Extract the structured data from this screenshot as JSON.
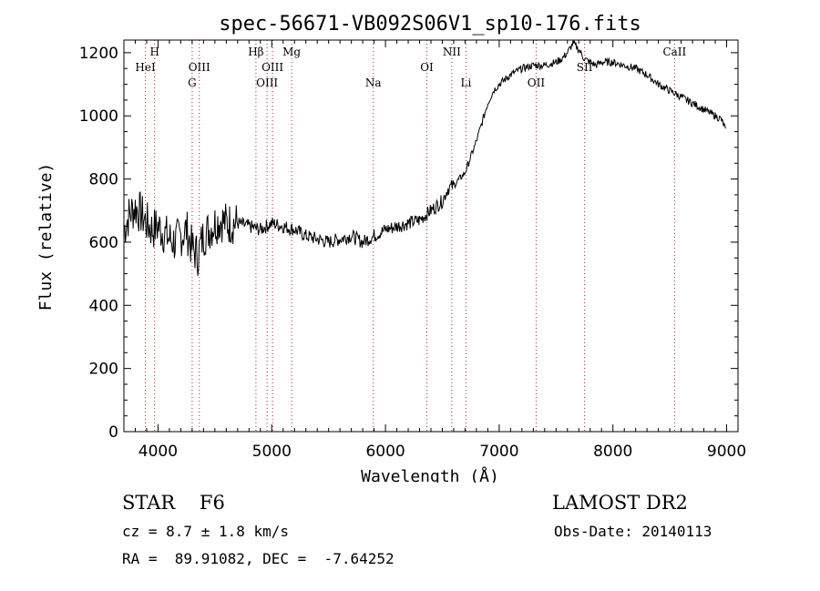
{
  "chart_data": {
    "type": "line",
    "title": "spec-56671-VB092S06V1_sp10-176.fits",
    "xlabel": "Wavelength (Å)",
    "ylabel": "Flux (relative)",
    "xlim": [
      3700,
      9100
    ],
    "ylim": [
      0,
      1240
    ],
    "xticks": [
      4000,
      5000,
      6000,
      7000,
      8000,
      9000
    ],
    "yticks": [
      0,
      200,
      400,
      600,
      800,
      1000,
      1200
    ],
    "series": [
      {
        "name": "spectrum",
        "x": [
          3700,
          3750,
          3800,
          3850,
          3900,
          3950,
          4000,
          4050,
          4100,
          4150,
          4200,
          4250,
          4300,
          4350,
          4400,
          4450,
          4500,
          4550,
          4600,
          4700,
          4800,
          4900,
          5000,
          5100,
          5200,
          5300,
          5400,
          5500,
          5600,
          5700,
          5800,
          5900,
          6000,
          6100,
          6200,
          6300,
          6400,
          6500,
          6550,
          6600,
          6700,
          6750,
          6800,
          6850,
          6900,
          6950,
          7000,
          7100,
          7200,
          7300,
          7400,
          7500,
          7550,
          7600,
          7650,
          7700,
          7750,
          7800,
          7850,
          7900,
          8000,
          8100,
          8200,
          8300,
          8400,
          8500,
          8600,
          8700,
          8800,
          8900,
          8950,
          8990
        ],
        "y": [
          640,
          690,
          710,
          690,
          660,
          640,
          650,
          630,
          610,
          600,
          620,
          640,
          580,
          560,
          620,
          640,
          660,
          670,
          660,
          660,
          650,
          640,
          660,
          650,
          640,
          620,
          610,
          600,
          610,
          620,
          600,
          620,
          640,
          650,
          660,
          670,
          700,
          730,
          770,
          780,
          820,
          870,
          920,
          980,
          1040,
          1080,
          1100,
          1130,
          1150,
          1160,
          1160,
          1170,
          1180,
          1200,
          1230,
          1210,
          1180,
          1170,
          1160,
          1170,
          1170,
          1160,
          1150,
          1130,
          1100,
          1080,
          1060,
          1040,
          1020,
          1000,
          990,
          960
        ]
      }
    ],
    "lines": [
      {
        "x": 3889,
        "label": "HeI",
        "row": 2
      },
      {
        "x": 3970,
        "label": "H",
        "row": 1
      },
      {
        "x": 4300,
        "label": "G",
        "row": 3
      },
      {
        "x": 4363,
        "label": "OIII",
        "row": 2
      },
      {
        "x": 4861,
        "label": "Hβ",
        "row": 1
      },
      {
        "x": 4959,
        "label": "OIII",
        "row": 3
      },
      {
        "x": 5007,
        "label": "OIII",
        "row": 2
      },
      {
        "x": 5175,
        "label": "Mg",
        "row": 1
      },
      {
        "x": 5893,
        "label": "Na",
        "row": 3
      },
      {
        "x": 6364,
        "label": "OI",
        "row": 2
      },
      {
        "x": 6583,
        "label": "NII",
        "row": 1
      },
      {
        "x": 6708,
        "label": "Li",
        "row": 3
      },
      {
        "x": 7325,
        "label": "OII",
        "row": 3
      },
      {
        "x": 7751,
        "label": "SII",
        "row": 2
      },
      {
        "x": 8542,
        "label": "CaII",
        "row": 1
      }
    ]
  },
  "info": {
    "class_line": "STAR    F6",
    "cz_line": "cz = 8.7 ± 1.8 km/s",
    "radec_line": "RA =  89.91082, DEC =  -7.64252",
    "survey": "LAMOST DR2",
    "obs_date": "Obs-Date: 20140113"
  }
}
